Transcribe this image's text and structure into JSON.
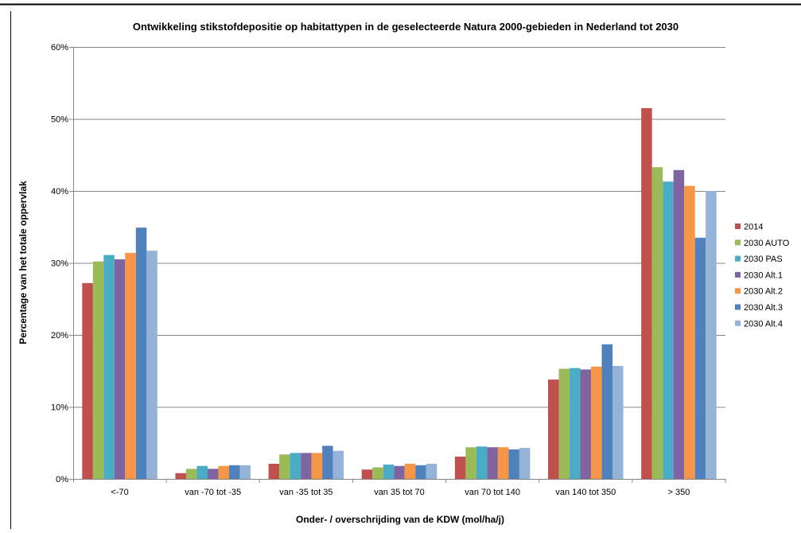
{
  "chart_data": {
    "type": "bar",
    "title": "Ontwikkeling stikstofdepositie op habitattypen in de geselecteerde Natura 2000-gebieden in Nederland tot 2030",
    "xlabel": "Onder- / overschrijding van de KDW (mol/ha/j)",
    "ylabel": "Percentage van het totale oppervlak",
    "ylim": [
      0,
      60
    ],
    "yticks": [
      "0%",
      "10%",
      "20%",
      "30%",
      "40%",
      "50%",
      "60%"
    ],
    "grid": true,
    "legend_position": "right",
    "categories": [
      "<-70",
      "van -70 tot -35",
      "van -35 tot 35",
      "van 35 tot 70",
      "van 70 tot 140",
      "van 140 tot 350",
      "> 350"
    ],
    "series": [
      {
        "name": "2014",
        "color": "#C0504D",
        "values": [
          27.2,
          0.8,
          2.1,
          1.3,
          3.1,
          13.8,
          51.5
        ]
      },
      {
        "name": "2030 AUTO",
        "color": "#9BBB59",
        "values": [
          30.2,
          1.4,
          3.4,
          1.6,
          4.4,
          15.3,
          43.3
        ]
      },
      {
        "name": "2030 PAS",
        "color": "#4BACC6",
        "values": [
          31.1,
          1.8,
          3.6,
          2.0,
          4.5,
          15.4,
          41.3
        ]
      },
      {
        "name": "2030 Alt.1",
        "color": "#8064A2",
        "values": [
          30.5,
          1.4,
          3.6,
          1.8,
          4.4,
          15.2,
          42.9
        ]
      },
      {
        "name": "2030 Alt.2",
        "color": "#F79646",
        "values": [
          31.4,
          1.8,
          3.6,
          2.1,
          4.4,
          15.6,
          40.7
        ]
      },
      {
        "name": "2030 Alt.3",
        "color": "#4F81BD",
        "values": [
          34.9,
          1.9,
          4.6,
          1.9,
          4.1,
          18.7,
          33.5
        ]
      },
      {
        "name": "2030 Alt.4",
        "color": "#95B3D7",
        "values": [
          31.7,
          1.9,
          3.9,
          2.1,
          4.3,
          15.7,
          40.0
        ]
      }
    ]
  }
}
